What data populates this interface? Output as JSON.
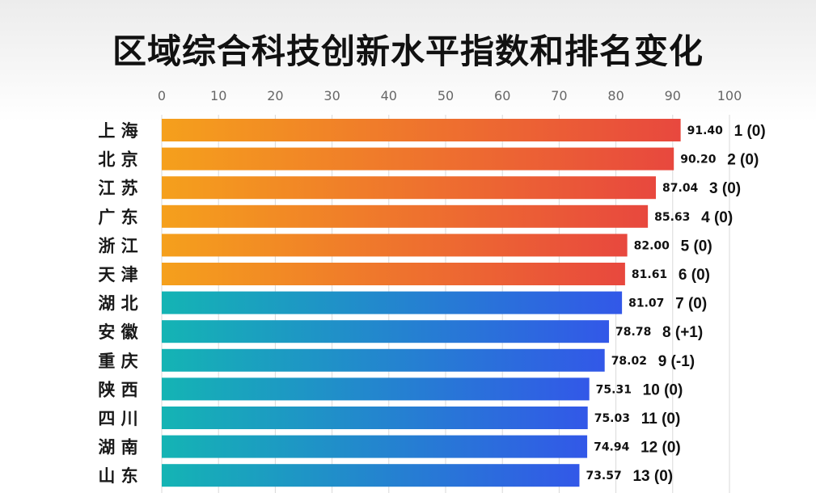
{
  "chart_data": {
    "type": "bar",
    "orientation": "horizontal",
    "title": "区域综合科技创新水平指数和排名变化",
    "xlim": [
      0,
      100
    ],
    "ticks": [
      0,
      10,
      20,
      30,
      40,
      50,
      60,
      70,
      80,
      90,
      100
    ],
    "tick_labels": [
      "0",
      "10",
      "20",
      "30",
      "40",
      "50",
      "60",
      "70",
      "80",
      "90",
      "100"
    ],
    "grid": true,
    "legend": "none",
    "categories": [
      "上 海",
      "北 京",
      "江 苏",
      "广 东",
      "浙 江",
      "天 津",
      "湖 北",
      "安 徽",
      "重 庆",
      "陕 西",
      "四 川",
      "湖 南",
      "山 东"
    ],
    "values": [
      91.4,
      90.2,
      87.04,
      85.63,
      82.0,
      81.61,
      81.07,
      78.78,
      78.02,
      75.31,
      75.03,
      74.94,
      73.57
    ],
    "value_labels": [
      "91.40",
      "90.20",
      "87.04",
      "85.63",
      "82.00",
      "81.61",
      "81.07",
      "78.78",
      "78.02",
      "75.31",
      "75.03",
      "74.94",
      "73.57"
    ],
    "rank_labels": [
      "1 (0)",
      "2 (0)",
      "3 (0)",
      "4 (0)",
      "5 (0)",
      "6 (0)",
      "7 (0)",
      "8 (+1)",
      "9 (-1)",
      "10 (0)",
      "11 (0)",
      "12 (0)",
      "13 (0)"
    ],
    "highlight_rank_index": 7,
    "orange_group_count": 6,
    "colors": {
      "orange_start": "#f5a01c",
      "orange_end": "#e8483e",
      "blue_start": "#14b4b4",
      "blue_end": "#3258e8",
      "highlight": "#e60000",
      "grid": "#d9d9d9",
      "text": "#111111"
    }
  }
}
